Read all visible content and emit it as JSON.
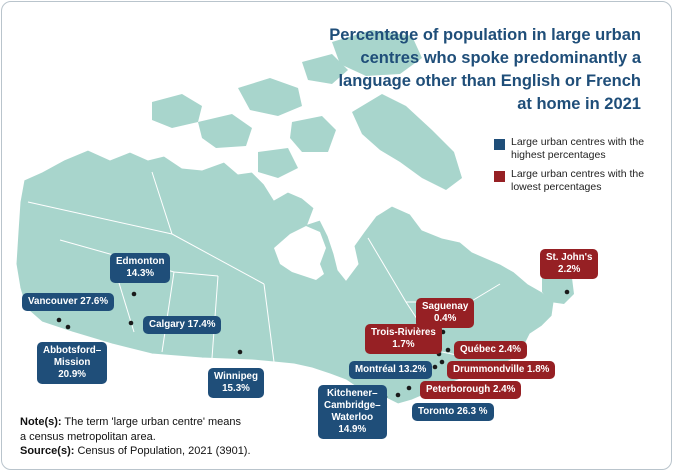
{
  "title": "Percentage of population in large urban centres who spoke predominantly a language other than English or French at home in 2021",
  "legend": {
    "high": "Large urban centres with the highest percentages",
    "low": "Large urban centres with the lowest percentages"
  },
  "colors": {
    "high": "#1f4e79",
    "low": "#962024",
    "land": "#a8d5cc",
    "water": "#ffffff"
  },
  "cities": [
    {
      "key": "vancouver",
      "line1": "Vancouver 27.6%",
      "line2": "",
      "value": 27.6,
      "group": "high"
    },
    {
      "key": "abbotsford",
      "line1": "Abbotsford–",
      "line2": "Mission",
      "line3": "20.9%",
      "value": 20.9,
      "group": "high"
    },
    {
      "key": "edmonton",
      "line1": "Edmonton",
      "line2": "14.3%",
      "value": 14.3,
      "group": "high"
    },
    {
      "key": "calgary",
      "line1": "Calgary 17.4%",
      "line2": "",
      "value": 17.4,
      "group": "high"
    },
    {
      "key": "winnipeg",
      "line1": "Winnipeg",
      "line2": "15.3%",
      "value": 15.3,
      "group": "high"
    },
    {
      "key": "kitchener",
      "line1": "Kitchener–",
      "line2": "Cambridge–",
      "line3": "Waterloo",
      "line4": "14.9%",
      "value": 14.9,
      "group": "high"
    },
    {
      "key": "toronto",
      "line1": "Toronto 26.3 %",
      "line2": "",
      "value": 26.3,
      "group": "high"
    },
    {
      "key": "montreal",
      "line1": "Montréal 13.2%",
      "line2": "",
      "value": 13.2,
      "group": "high"
    },
    {
      "key": "saguenay",
      "line1": "Saguenay",
      "line2": "0.4%",
      "value": 0.4,
      "group": "low"
    },
    {
      "key": "troisrivieres",
      "line1": "Trois-Rivières",
      "line2": "1.7%",
      "value": 1.7,
      "group": "low"
    },
    {
      "key": "quebec",
      "line1": "Québec 2.4%",
      "line2": "",
      "value": 2.4,
      "group": "low"
    },
    {
      "key": "drummondville",
      "line1": "Drummondville 1.8%",
      "line2": "",
      "value": 1.8,
      "group": "low"
    },
    {
      "key": "peterborough",
      "line1": "Peterborough 2.4%",
      "line2": "",
      "value": 2.4,
      "group": "low"
    },
    {
      "key": "stjohns",
      "line1": "St. John's",
      "line2": "2.2%",
      "value": 2.2,
      "group": "low"
    }
  ],
  "notes": {
    "label": "Note(s):",
    "text": " The term 'large urban centre' means",
    "text2": "a census metropolitan area.",
    "source_label": "Source(s):",
    "source_text": " Census of Population, 2021 (3901)."
  }
}
